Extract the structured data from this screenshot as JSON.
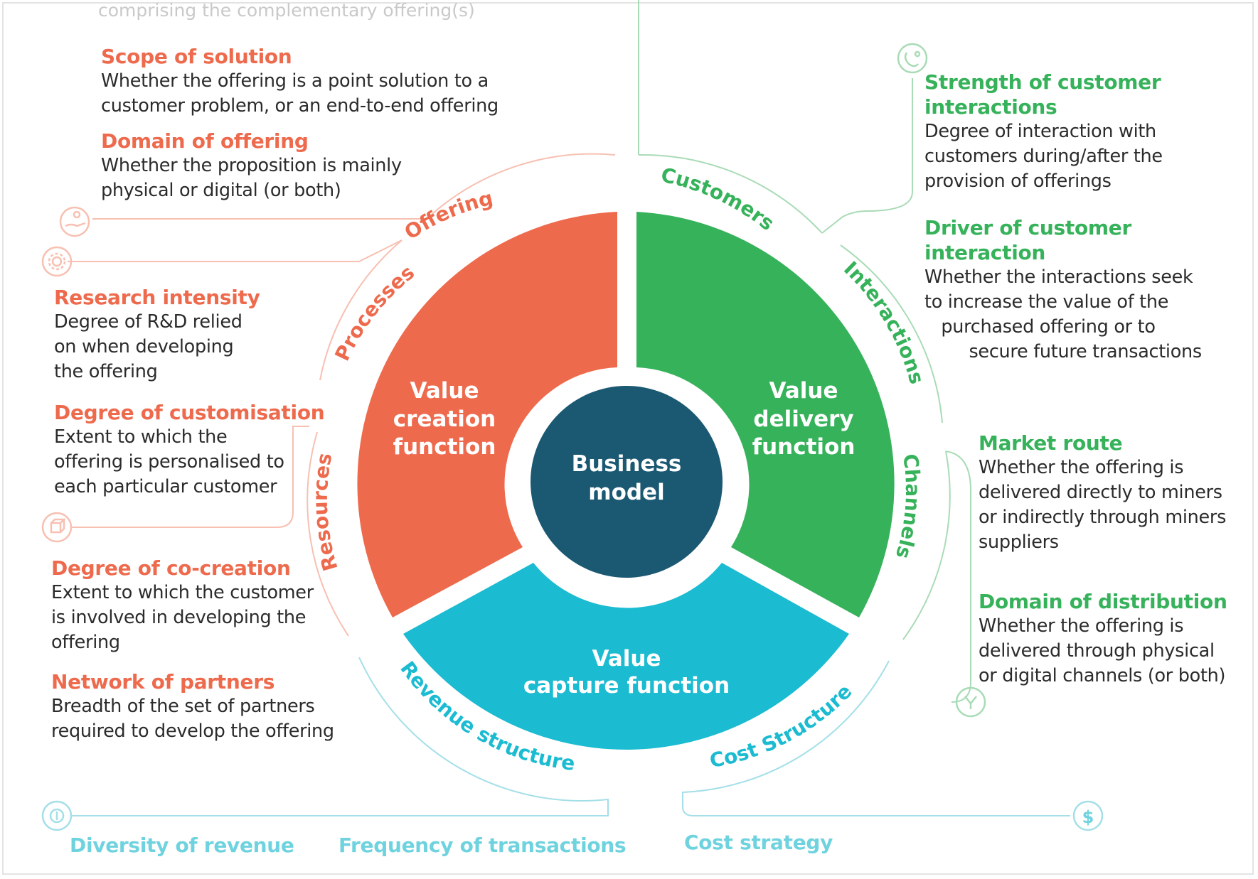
{
  "cutoff_top_text": "comprising the complementary offering(s)",
  "center": {
    "line1": "Business",
    "line2": "model",
    "color": "#1b5872"
  },
  "functions": {
    "creation": {
      "l1": "Value",
      "l2": "creation",
      "l3": "function",
      "color": "#ee6a4d"
    },
    "delivery": {
      "l1": "Value",
      "l2": "delivery",
      "l3": "function",
      "color": "#36b25a"
    },
    "capture": {
      "l1": "Value",
      "l2": "capture function",
      "color": "#1bbbd1"
    }
  },
  "ring_labels": {
    "offering": "Offering",
    "processes": "Processes",
    "resources": "Resources",
    "customers": "Customers",
    "interactions": "Interactions",
    "channels": "Channels",
    "revenue": "Revenue structure",
    "cost": "Cost Structure"
  },
  "left_blocks": [
    {
      "title": "Scope of solution",
      "lines": [
        "Whether the offering is a point solution to a",
        "customer problem, or an end-to-end offering"
      ]
    },
    {
      "title": "Domain of offering",
      "lines": [
        "Whether the proposition is mainly",
        "physical or digital (or both)"
      ]
    },
    {
      "title": "Research intensity",
      "lines": [
        "Degree of R&D relied",
        "on when developing",
        "the offering"
      ]
    },
    {
      "title": "Degree of customisation",
      "lines": [
        "Extent to which the",
        "offering is personalised to",
        "each particular customer"
      ]
    },
    {
      "title": "Degree of co-creation",
      "lines": [
        "Extent to which the customer",
        "is involved in developing the",
        "offering"
      ]
    },
    {
      "title": "Network of partners",
      "lines": [
        "Breadth of the set of partners",
        "required to develop the offering"
      ]
    }
  ],
  "right_blocks": [
    {
      "title_l1": "Strength of customer",
      "title_l2": "interactions",
      "lines": [
        "Degree of interaction with",
        "customers during/after the",
        "provision of offerings"
      ]
    },
    {
      "title_l1": "Driver of customer",
      "title_l2": "interaction",
      "lines": [
        "Whether the interactions seek",
        "to increase the value of the",
        "   purchased offering or to",
        "        secure future transactions"
      ]
    },
    {
      "title": "Market route",
      "lines": [
        "Whether the offering is",
        "delivered directly to miners",
        "or indirectly through miners",
        "suppliers"
      ]
    },
    {
      "title": "Domain of distribution",
      "lines": [
        "Whether the offering is",
        "delivered through physical",
        "or digital channels (or both)"
      ]
    }
  ],
  "bottom_labels": {
    "diversity": "Diversity of revenue",
    "frequency": "Frequency of transactions",
    "cost_strategy": "Cost strategy"
  },
  "icons": {
    "offering": "hand-person-icon",
    "processes": "gear-icon",
    "resources": "cube-icon",
    "interactions": "phone-cycle-icon",
    "channels": "branch-icon",
    "revenue": "coin-icon",
    "cost": "dollar-icon"
  },
  "colors": {
    "orange": "#ee6a4d",
    "green": "#36b25a",
    "cyan": "#1bbbd1",
    "navy": "#1b5872"
  }
}
